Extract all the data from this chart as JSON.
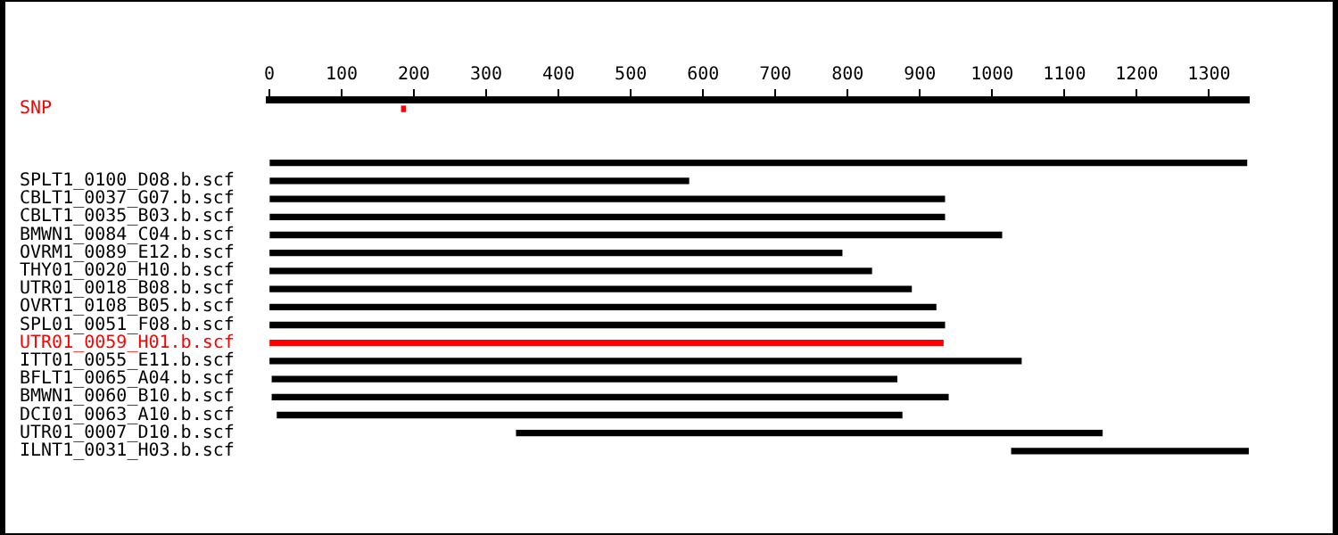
{
  "chart_data": {
    "type": "bar",
    "orientation": "horizontal",
    "categories": [
      "SNP",
      null,
      null,
      null,
      "SPLT1_0100_D08.b.scf",
      "CBLT1_0037_G07.b.scf",
      "CBLT1_0035_B03.b.scf",
      "BMWN1_0084_C04.b.scf",
      "OVRM1_0089_E12.b.scf",
      "THY01_0020_H10.b.scf",
      "UTR01_0018_B08.b.scf",
      "OVRT1_0108_B05.b.scf",
      "SPL01_0051_F08.b.scf",
      "UTR01_0059_H01.b.scf",
      "ITT01_0055_E11.b.scf",
      "BFLT1_0065_A04.b.scf",
      "BMWN1_0060_B10.b.scf",
      "DCI01_0063_A10.b.scf",
      "UTR01_0007_D10.b.scf",
      "ILNT1_0031_H03.b.scf"
    ],
    "base": [
      183,
      null,
      null,
      0,
      0,
      0,
      0,
      0,
      1,
      1,
      1,
      1,
      1,
      1,
      1,
      4,
      4,
      11,
      342,
      1027
    ],
    "values": [
      5,
      null,
      null,
      1352,
      580,
      934,
      934,
      1013,
      791,
      832,
      887,
      921,
      933,
      931,
      1039,
      864,
      935,
      864,
      810,
      328
    ],
    "colors": [
      "#ff0000",
      "#000000",
      "#000000",
      "#000000",
      "#000000",
      "#000000",
      "#000000",
      "#000000",
      "#000000",
      "#000000",
      "#000000",
      "#000000",
      "#000000",
      "#ff0000",
      "#000000",
      "#000000",
      "#000000",
      "#000000",
      "#000000",
      "#000000"
    ],
    "xlim": [
      0,
      1355
    ],
    "xticks": [
      0,
      100,
      200,
      300,
      400,
      500,
      600,
      700,
      800,
      900,
      1000,
      1100,
      1200,
      1300
    ],
    "grid": false,
    "legend": false
  }
}
